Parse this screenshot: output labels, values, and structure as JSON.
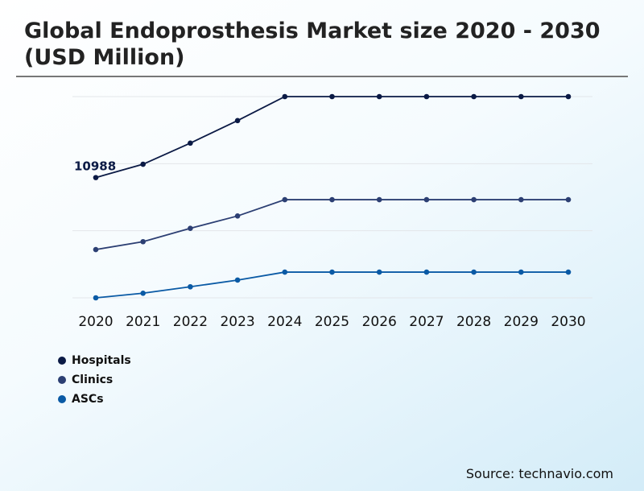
{
  "title": "Global Endoprosthesis Market size 2020 - 2030 (USD Million)",
  "source": "Source: technavio.com",
  "chart_data": {
    "type": "line",
    "title": "Global Endoprosthesis Market size 2020 - 2030 (USD Million)",
    "categories": [
      "2020",
      "2021",
      "2022",
      "2023",
      "2024",
      "2025",
      "2026",
      "2027",
      "2028",
      "2029",
      "2030"
    ],
    "ylim": [
      0,
      18390
    ],
    "grid": true,
    "legend_position": "bottom-left",
    "series": [
      {
        "name": "Hospitals",
        "color": "#0b1a45",
        "values": [
          10988,
          12210,
          14140,
          16200,
          18390,
          18390,
          18390,
          18390,
          18390,
          18390,
          18390
        ]
      },
      {
        "name": "Clinics",
        "color": "#2c3f73",
        "values": [
          4410,
          5130,
          6350,
          7480,
          8970,
          8970,
          8970,
          8970,
          8970,
          8970,
          8970
        ]
      },
      {
        "name": "ASCs",
        "color": "#0a5aa5",
        "values": [
          0,
          420,
          1010,
          1620,
          2350,
          2350,
          2350,
          2350,
          2350,
          2350,
          2350
        ]
      }
    ],
    "data_labels": [
      {
        "series": "Hospitals",
        "category": "2020",
        "text": "10988"
      }
    ]
  }
}
